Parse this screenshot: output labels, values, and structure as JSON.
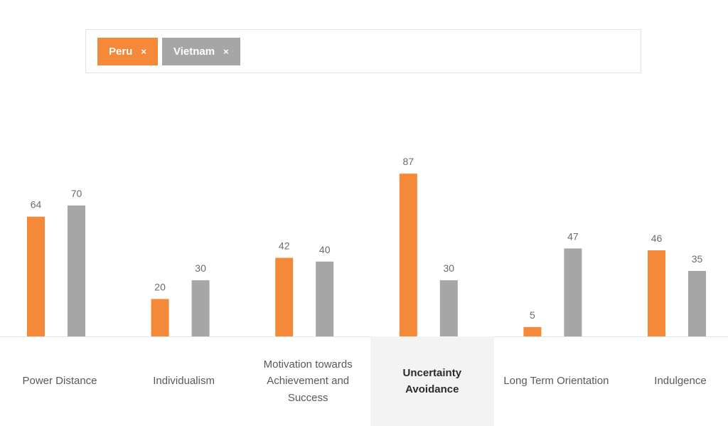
{
  "filters": [
    {
      "label": "Peru",
      "remove": "×",
      "color": "#f5893a"
    },
    {
      "label": "Vietnam",
      "remove": "×",
      "color": "#a6a6a6"
    }
  ],
  "chart_data": {
    "type": "bar",
    "categories": [
      "Power Distance",
      "Individualism",
      "Motivation towards Achievement and Success",
      "Uncertainty Avoidance",
      "Long Term Orientation",
      "Indulgence"
    ],
    "series": [
      {
        "name": "Peru",
        "color": "#f5893a",
        "values": [
          64,
          20,
          42,
          87,
          5,
          46
        ]
      },
      {
        "name": "Vietnam",
        "color": "#a6a6a6",
        "values": [
          70,
          30,
          40,
          30,
          47,
          35
        ]
      }
    ],
    "ylim": [
      0,
      100
    ],
    "highlighted_category": "Uncertainty Avoidance",
    "grid": false
  }
}
